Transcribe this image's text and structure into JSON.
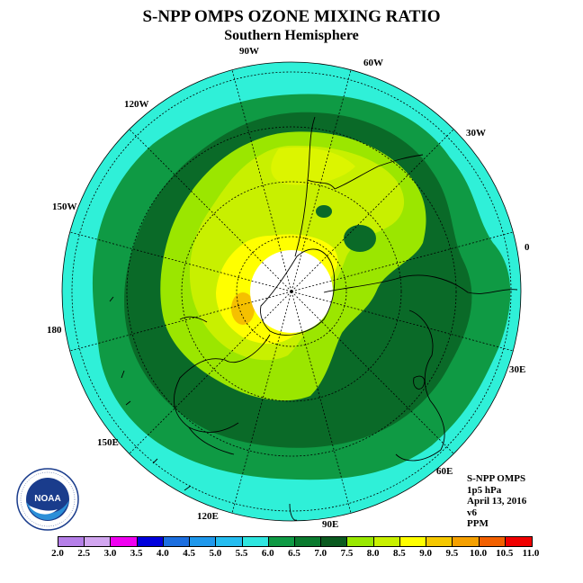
{
  "title": "S-NPP OMPS OZONE MIXING RATIO",
  "subtitle": "Southern Hemisphere",
  "longitude_labels": {
    "90W": "90W",
    "60W": "60W",
    "30W": "30W",
    "0": "0",
    "30E": "30E",
    "60E": "60E",
    "90E": "90E",
    "120E": "120E",
    "150E": "150E",
    "180": "180",
    "150W": "150W",
    "120W": "120W"
  },
  "info": {
    "instrument": "S-NPP OMPS",
    "level": "1p5 hPa",
    "date": "April 13, 2016",
    "version": "v6",
    "units": "PPM"
  },
  "logo": {
    "text": "NOAA",
    "ring_text": "NATIONAL OCEANIC AND ATMOSPHERIC ADMINISTRATION · U.S. DEPARTMENT OF COMMERCE"
  },
  "colorbar": {
    "labels": [
      "2.0",
      "2.5",
      "3.0",
      "3.5",
      "4.0",
      "4.5",
      "5.0",
      "5.5",
      "6.0",
      "6.5",
      "7.0",
      "7.5",
      "8.0",
      "8.5",
      "9.0",
      "9.5",
      "10.0",
      "10.5",
      "11.0"
    ],
    "colors": [
      "#b57fe8",
      "#d2a6f0",
      "#f000f0",
      "#0000dd",
      "#1c6fe0",
      "#1f98ec",
      "#25bdf0",
      "#2fe6e0",
      "#0f9a44",
      "#0a7a2e",
      "#0a5a1f",
      "#99e800",
      "#c8f000",
      "#ffff00",
      "#f5c800",
      "#f5a000",
      "#f26000",
      "#f00000",
      "#7a4a2a"
    ]
  },
  "map": {
    "field_colors": {
      "outer": "#2ff0d8",
      "ring_65": "#0f9a44",
      "ring_70": "#0a6a28",
      "core_75": "#9be600",
      "core_80": "#c8f000",
      "core_85": "#ffff00",
      "core_90": "#f5c000",
      "pole_gap": "#ffffff"
    }
  }
}
